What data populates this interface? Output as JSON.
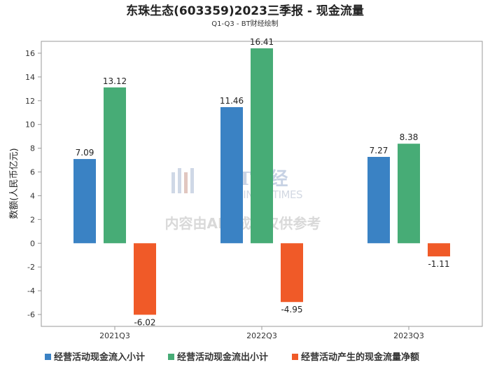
{
  "chart_data": {
    "type": "bar",
    "title": "东珠生态(603359)2023三季报 - 现金流量",
    "subtitle": "Q1-Q3 - BT财经绘制",
    "ylabel": "数额(人民币亿元)",
    "xlabel": "",
    "ylim": [
      -7,
      17
    ],
    "yticks": [
      -6,
      -4,
      -2,
      0,
      2,
      4,
      6,
      8,
      10,
      12,
      14,
      16
    ],
    "categories": [
      "2021Q3",
      "2022Q3",
      "2023Q3"
    ],
    "series": [
      {
        "name": "经营活动现金流入小计",
        "color": "#3a82c4",
        "values": [
          7.09,
          11.46,
          7.27
        ]
      },
      {
        "name": "经营活动现金流出小计",
        "color": "#47ac76",
        "values": [
          13.12,
          16.41,
          8.38
        ]
      },
      {
        "name": "经营活动产生的现金流量净额",
        "color": "#f05a28",
        "values": [
          -6.02,
          -4.95,
          -1.11
        ]
      }
    ],
    "grid": false,
    "legend_position": "bottom-left"
  },
  "watermark": {
    "logo_text": "BT财经",
    "logo_sub": "BUSINESSTIMES",
    "notice": "内容由AI生成，仅供参考"
  }
}
